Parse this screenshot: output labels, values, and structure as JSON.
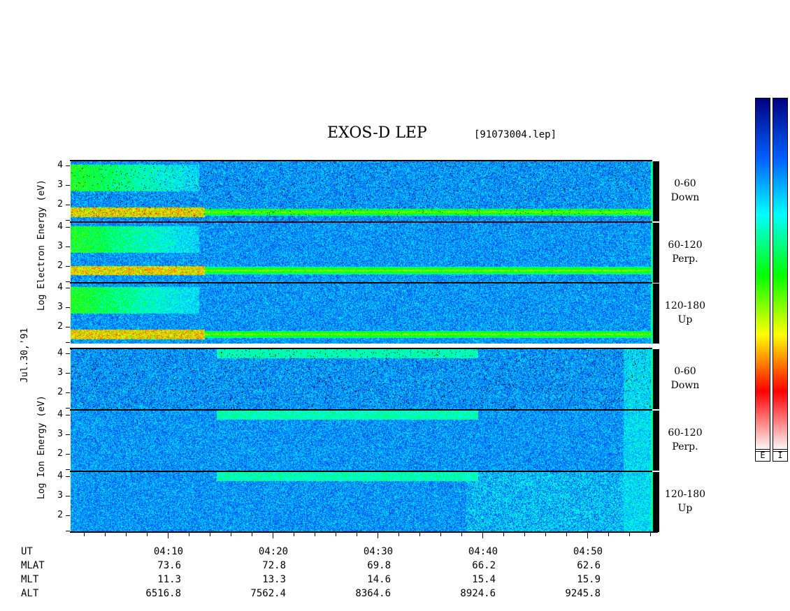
{
  "title": "EXOS-D LEP",
  "filename": "[91073004.lep]",
  "date_label": "Jul.30,'91",
  "electron_ylabel": "Log  Electron  Energy (eV)",
  "ion_ylabel": "Log  Ion  Energy (eV)",
  "panels": [
    {
      "group": "electron",
      "label_top": "0-60",
      "label_bottom": "Down",
      "yticks": [
        "4",
        "3",
        "2"
      ]
    },
    {
      "group": "electron",
      "label_top": "60-120",
      "label_bottom": "Perp.",
      "yticks": [
        "4",
        "3",
        "2"
      ]
    },
    {
      "group": "electron",
      "label_top": "120-180",
      "label_bottom": "Up",
      "yticks": [
        "4",
        "3",
        "2"
      ]
    },
    {
      "group": "ion",
      "label_top": "0-60",
      "label_bottom": "Down",
      "yticks": [
        "4",
        "3",
        "2"
      ]
    },
    {
      "group": "ion",
      "label_top": "60-120",
      "label_bottom": "Perp.",
      "yticks": [
        "4",
        "3",
        "2"
      ]
    },
    {
      "group": "ion",
      "label_top": "120-180",
      "label_bottom": "Up",
      "yticks": [
        "4",
        "3",
        "2"
      ]
    }
  ],
  "xaxis": {
    "row_labels": [
      "UT",
      "MLAT",
      "MLT",
      "ALT"
    ],
    "columns": [
      {
        "ut": "04:10",
        "mlat": "73.6",
        "mlt": "11.3",
        "alt": "6516.8"
      },
      {
        "ut": "04:20",
        "mlat": "72.8",
        "mlt": "13.3",
        "alt": "7562.4"
      },
      {
        "ut": "04:30",
        "mlat": "69.8",
        "mlt": "14.6",
        "alt": "8364.6"
      },
      {
        "ut": "04:40",
        "mlat": "66.2",
        "mlt": "15.4",
        "alt": "8924.6"
      },
      {
        "ut": "04:50",
        "mlat": "62.6",
        "mlt": "15.9",
        "alt": "9245.8"
      }
    ]
  },
  "colorbars": [
    {
      "label": "E"
    },
    {
      "label": "I"
    }
  ],
  "chart_data": {
    "type": "heatmap",
    "title": "EXOS-D LEP",
    "x_range_ut": [
      "04:01",
      "04:56"
    ],
    "x_major_ticks": [
      "04:10",
      "04:20",
      "04:30",
      "04:40",
      "04:50"
    ],
    "y_scale": "log energy (eV)",
    "y_range_log": [
      1,
      4
    ],
    "panels": [
      "Electron 0-60 Down",
      "Electron 60-120 Perp.",
      "Electron 120-180 Up",
      "Ion 0-60 Down",
      "Ion 60-120 Perp.",
      "Ion 120-180 Up"
    ],
    "colormap": [
      "#ffffff",
      "#ff0000",
      "#ffff00",
      "#00ff00",
      "#00ffff",
      "#0060ff",
      "#000080"
    ]
  }
}
